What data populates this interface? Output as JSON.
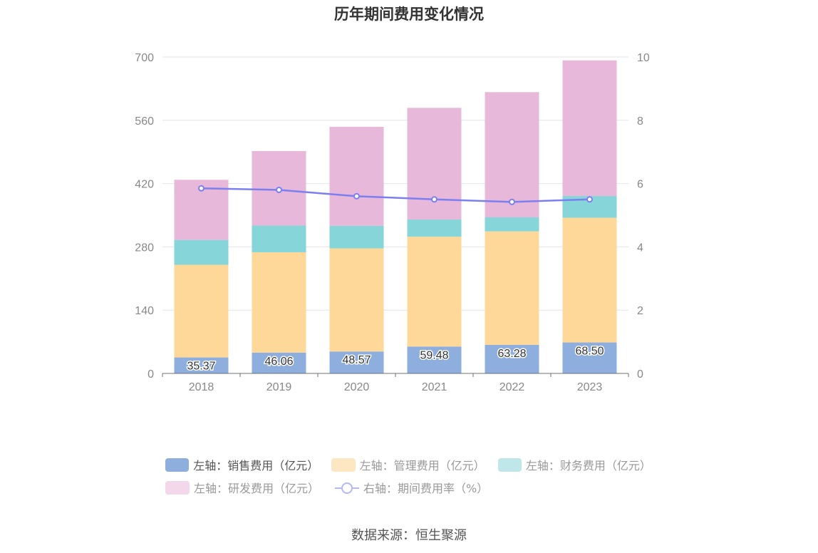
{
  "title": "历年期间费用变化情况",
  "source": "数据来源：恒生聚源",
  "chart_data": {
    "type": "bar",
    "stacked": true,
    "categories": [
      "2018",
      "2019",
      "2020",
      "2021",
      "2022",
      "2023"
    ],
    "left_axis": {
      "min": 0,
      "max": 700,
      "ticks": [
        0,
        140,
        280,
        420,
        560,
        700
      ]
    },
    "right_axis": {
      "min": 0,
      "max": 10,
      "ticks": [
        0,
        2,
        4,
        6,
        8,
        10
      ]
    },
    "series": [
      {
        "name": "左轴：销售费用（亿元）",
        "axis": "left",
        "type": "bar",
        "color": "#8eaedd",
        "values": [
          35.37,
          46.06,
          48.57,
          59.48,
          63.28,
          68.5
        ],
        "labels": [
          "35.37",
          "46.06",
          "48.57",
          "59.48",
          "63.28",
          "68.50"
        ]
      },
      {
        "name": "左轴：管理费用（亿元）",
        "axis": "left",
        "type": "bar",
        "color": "#fed899",
        "legend_color": "#fde7c2",
        "values": [
          205,
          222,
          228,
          243,
          251,
          276
        ]
      },
      {
        "name": "左轴：财务费用（亿元）",
        "axis": "left",
        "type": "bar",
        "color": "#86d5d9",
        "legend_color": "#bfe6e9",
        "values": [
          55,
          59,
          50,
          38,
          31,
          48
        ]
      },
      {
        "name": "左轴：研发费用（亿元）",
        "axis": "left",
        "type": "bar",
        "color": "#e7b8d9",
        "legend_color": "#f2d8ea",
        "values": [
          133,
          165,
          219,
          247,
          277,
          300
        ]
      },
      {
        "name": "右轴：期间费用率（%）",
        "axis": "right",
        "type": "line",
        "color": "#7b7ff0",
        "legend_color": "#b5b7f6",
        "values": [
          5.85,
          5.8,
          5.6,
          5.5,
          5.42,
          5.5
        ]
      }
    ]
  }
}
